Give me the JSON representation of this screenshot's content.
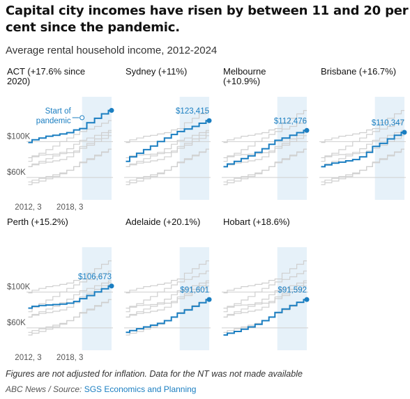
{
  "title": "Capital city incomes have risen by between 11 and 20 per cent since the pandemic.",
  "subtitle": "Average rental household income, 2012-2024",
  "footnote": "Figures are not adjusted for inflation. Data for the NT was not made available",
  "source_prefix": "ABC News / Source: ",
  "source_link": "SGS Economics and Planning",
  "colors": {
    "highlight": "#1a7ec1",
    "background_series": "#cfcfcf",
    "pandemic_band": "#e6f1f9",
    "gridline": "#cfcfcf"
  },
  "chart_data": {
    "type": "line",
    "y_ticks": [
      "$100K",
      "$60K"
    ],
    "x_ticks": [
      "2012, 3",
      "2018, 3"
    ],
    "pandemic_annotation": "Start of\npandemic",
    "panels": [
      {
        "title": "ACT (+17.6% since\n2020)",
        "end_value": "",
        "x": [
          2012.5,
          2013.5,
          2014.5,
          2015.5,
          2016.5,
          2017.5,
          2018.5,
          2019.5,
          2020.25,
          2021.5,
          2022.5,
          2023.5,
          2024.5
        ],
        "y": [
          99000,
          102000,
          104000,
          106000,
          107000,
          108500,
          110000,
          113000,
          114600,
          121000,
          126000,
          131000,
          134800
        ]
      },
      {
        "title": "Sydney (+11%)",
        "end_value": "$123,415",
        "x": [
          2012.5,
          2013.5,
          2014.5,
          2015.5,
          2016.5,
          2017.5,
          2018.5,
          2019.5,
          2020.25,
          2021.5,
          2022.5,
          2023.5,
          2024.5
        ],
        "y": [
          78000,
          83000,
          87000,
          91000,
          95000,
          100000,
          104000,
          108000,
          111200,
          114000,
          117000,
          120500,
          123415
        ]
      },
      {
        "title": "Melbourne\n(+10.9%)",
        "end_value": "$112,476",
        "x": [
          2012.5,
          2013.5,
          2014.5,
          2015.5,
          2016.5,
          2017.5,
          2018.5,
          2019.5,
          2020.25,
          2021.5,
          2022.5,
          2023.5,
          2024.5
        ],
        "y": [
          72000,
          75000,
          78000,
          81000,
          84000,
          88000,
          92000,
          97000,
          101400,
          104000,
          107000,
          110000,
          112476
        ]
      },
      {
        "title": "Brisbane (+16.7%)",
        "end_value": "$110,347",
        "x": [
          2012.5,
          2013.5,
          2014.5,
          2015.5,
          2016.5,
          2017.5,
          2018.5,
          2019.5,
          2020.25,
          2021.5,
          2022.5,
          2023.5,
          2024.5
        ],
        "y": [
          72000,
          74000,
          76000,
          77000,
          78500,
          80000,
          83000,
          88000,
          94600,
          98000,
          103000,
          107000,
          110347
        ]
      },
      {
        "title": "Perth (+15.2%)",
        "end_value": "$106,673",
        "x": [
          2012.5,
          2013.5,
          2014.5,
          2015.5,
          2016.5,
          2017.5,
          2018.5,
          2019.5,
          2020.25,
          2021.5,
          2022.5,
          2023.5,
          2024.5
        ],
        "y": [
          82000,
          84000,
          85000,
          85500,
          86000,
          86500,
          87500,
          89500,
          92600,
          96000,
          100000,
          103500,
          106673
        ]
      },
      {
        "title": "Adelaide (+20.1%)",
        "end_value": "$91,601",
        "x": [
          2012.5,
          2013.5,
          2014.5,
          2015.5,
          2016.5,
          2017.5,
          2018.5,
          2019.5,
          2020.25,
          2021.5,
          2022.5,
          2023.5,
          2024.5
        ],
        "y": [
          55000,
          57000,
          59000,
          61000,
          63000,
          65000,
          68000,
          72000,
          76300,
          80000,
          84000,
          88000,
          91601
        ]
      },
      {
        "title": "Hobart (+18.6%)",
        "end_value": "$91,592",
        "x": [
          2012.5,
          2013.5,
          2014.5,
          2015.5,
          2016.5,
          2017.5,
          2018.5,
          2019.5,
          2020.25,
          2021.5,
          2022.5,
          2023.5,
          2024.5
        ],
        "y": [
          52000,
          54000,
          56000,
          58500,
          61000,
          64000,
          68000,
          72000,
          77200,
          81000,
          85000,
          88500,
          91592
        ]
      }
    ]
  }
}
